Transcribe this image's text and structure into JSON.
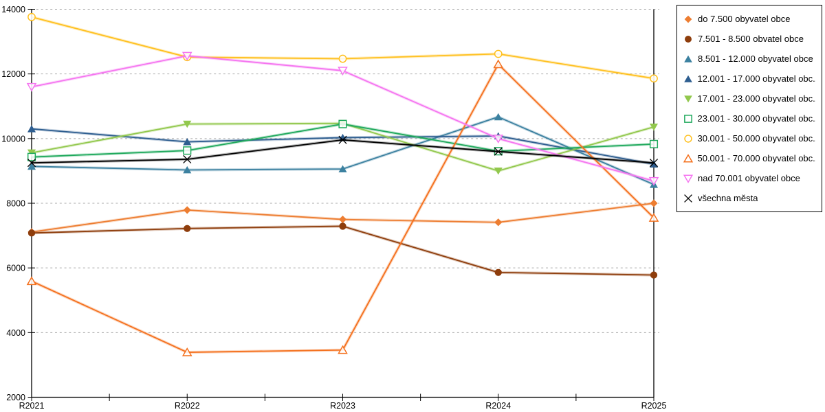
{
  "chart_data": {
    "type": "line",
    "categories": [
      "R2021",
      "R2022",
      "R2023",
      "R2024",
      "R2025"
    ],
    "series": [
      {
        "name": "do 7.500 obyvatel obce",
        "color": "#ED7D31",
        "marker": "diamond-filled",
        "values": [
          7110,
          7790,
          7500,
          7410,
          8000
        ]
      },
      {
        "name": "7.501 - 8.500 obvatel obce",
        "color": "#8E3D0C",
        "marker": "circle-filled",
        "values": [
          7080,
          7220,
          7290,
          5860,
          5780
        ]
      },
      {
        "name": "8.501 - 12.000 obyvatel obce",
        "color": "#3C81A0",
        "marker": "triangle-up-filled",
        "values": [
          9140,
          9030,
          9060,
          10670,
          8580
        ]
      },
      {
        "name": "12.001 - 17.000 obyvatel obc...",
        "color": "#2E5E90",
        "marker": "triangle-up-filled",
        "values": [
          10300,
          9900,
          10030,
          10080,
          9210
        ]
      },
      {
        "name": "17.001 - 23.000 obyvatel obc...",
        "color": "#92C84D",
        "marker": "triangle-down-filled",
        "values": [
          9560,
          10450,
          10470,
          9000,
          10360
        ]
      },
      {
        "name": "23.001 - 30.000 obyvatel obc...",
        "color": "#1FA95C",
        "marker": "square-open",
        "values": [
          9430,
          9630,
          10450,
          9610,
          9830
        ]
      },
      {
        "name": "30.001 - 50.000 obyvatel obc...",
        "color": "#FFC01E",
        "marker": "circle-open",
        "values": [
          13760,
          12520,
          12470,
          12620,
          11860
        ]
      },
      {
        "name": "50.001 - 70.000 obyvatel obc...",
        "color": "#F4701D",
        "marker": "triangle-up-open",
        "values": [
          5590,
          3390,
          3460,
          12300,
          7550
        ]
      },
      {
        "name": "nad 70.001 obyvatel obce",
        "color": "#F575F0",
        "marker": "triangle-down-open",
        "values": [
          11600,
          12560,
          12100,
          10000,
          8690
        ]
      },
      {
        "name": "všechna města",
        "color": "#000000",
        "marker": "x-cross",
        "values": [
          9250,
          9360,
          9960,
          9600,
          9250
        ]
      }
    ],
    "ylim": [
      2000,
      14000
    ],
    "yticks": [
      2000,
      4000,
      6000,
      8000,
      10000,
      12000,
      14000
    ],
    "grid": "horizontal-dashed",
    "gridline_color": "#ABABAB",
    "axis_color": "#000000",
    "legend_position": "top-right",
    "title": "",
    "xlabel": "",
    "ylabel": ""
  }
}
